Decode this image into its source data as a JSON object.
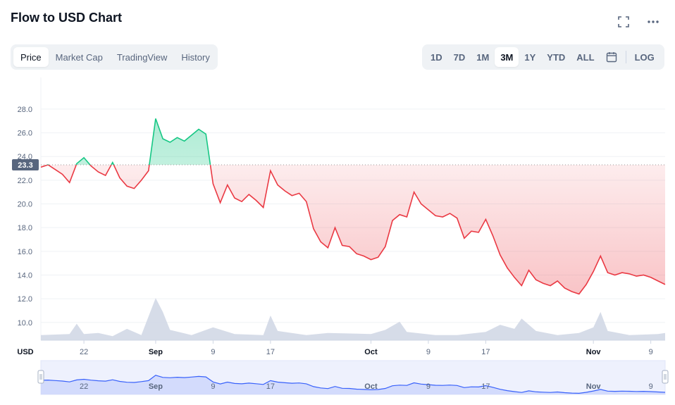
{
  "title": "Flow to USD Chart",
  "top_icons": [
    "fullscreen-icon",
    "more-icon"
  ],
  "tabs": [
    {
      "label": "Price",
      "active": true
    },
    {
      "label": "Market Cap",
      "active": false
    },
    {
      "label": "TradingView",
      "active": false
    },
    {
      "label": "History",
      "active": false
    }
  ],
  "ranges": [
    {
      "label": "1D",
      "active": false
    },
    {
      "label": "7D",
      "active": false
    },
    {
      "label": "1M",
      "active": false
    },
    {
      "label": "3M",
      "active": true
    },
    {
      "label": "1Y",
      "active": false
    },
    {
      "label": "YTD",
      "active": false
    },
    {
      "label": "ALL",
      "active": false
    }
  ],
  "calendar_icon": "calendar-icon",
  "log_label": "LOG",
  "colors": {
    "up": "#16c784",
    "down": "#ea3943",
    "nav": "#3861fb",
    "volume": "#cfd6e4"
  },
  "chart_data": {
    "type": "line",
    "currency_label": "USD",
    "current_price_label": "23.3",
    "reference_price": 23.3,
    "ylim": [
      8.5,
      29.6
    ],
    "y_ticks": [
      "28.0",
      "26.0",
      "24.0",
      "22.0",
      "20.0",
      "18.0",
      "16.0",
      "14.0",
      "12.0",
      "10.0"
    ],
    "x_ticks": [
      {
        "label": "22",
        "day": 6,
        "bold": false
      },
      {
        "label": "Sep",
        "day": 16,
        "bold": true
      },
      {
        "label": "9",
        "day": 24,
        "bold": false
      },
      {
        "label": "17",
        "day": 32,
        "bold": false
      },
      {
        "label": "Oct",
        "day": 46,
        "bold": true
      },
      {
        "label": "9",
        "day": 54,
        "bold": false
      },
      {
        "label": "17",
        "day": 62,
        "bold": false
      },
      {
        "label": "Nov",
        "day": 77,
        "bold": true
      },
      {
        "label": "9",
        "day": 85,
        "bold": false
      }
    ],
    "days_total": 87,
    "price_series": [
      {
        "day": 0,
        "price": 23.1
      },
      {
        "day": 1,
        "price": 23.3
      },
      {
        "day": 2,
        "price": 22.9
      },
      {
        "day": 3,
        "price": 22.5
      },
      {
        "day": 4,
        "price": 21.8
      },
      {
        "day": 5,
        "price": 23.4
      },
      {
        "day": 6,
        "price": 23.9
      },
      {
        "day": 7,
        "price": 23.2
      },
      {
        "day": 8,
        "price": 22.7
      },
      {
        "day": 9,
        "price": 22.4
      },
      {
        "day": 10,
        "price": 23.5
      },
      {
        "day": 11,
        "price": 22.2
      },
      {
        "day": 12,
        "price": 21.5
      },
      {
        "day": 13,
        "price": 21.3
      },
      {
        "day": 14,
        "price": 22.0
      },
      {
        "day": 15,
        "price": 22.8
      },
      {
        "day": 16,
        "price": 27.2
      },
      {
        "day": 17,
        "price": 25.5
      },
      {
        "day": 18,
        "price": 25.2
      },
      {
        "day": 19,
        "price": 25.6
      },
      {
        "day": 20,
        "price": 25.3
      },
      {
        "day": 21,
        "price": 25.8
      },
      {
        "day": 22,
        "price": 26.3
      },
      {
        "day": 23,
        "price": 25.9
      },
      {
        "day": 24,
        "price": 21.7
      },
      {
        "day": 25,
        "price": 20.1
      },
      {
        "day": 26,
        "price": 21.6
      },
      {
        "day": 27,
        "price": 20.5
      },
      {
        "day": 28,
        "price": 20.2
      },
      {
        "day": 29,
        "price": 20.8
      },
      {
        "day": 30,
        "price": 20.3
      },
      {
        "day": 31,
        "price": 19.7
      },
      {
        "day": 32,
        "price": 22.8
      },
      {
        "day": 33,
        "price": 21.6
      },
      {
        "day": 34,
        "price": 21.1
      },
      {
        "day": 35,
        "price": 20.7
      },
      {
        "day": 36,
        "price": 20.9
      },
      {
        "day": 37,
        "price": 20.2
      },
      {
        "day": 38,
        "price": 17.9
      },
      {
        "day": 39,
        "price": 16.8
      },
      {
        "day": 40,
        "price": 16.3
      },
      {
        "day": 41,
        "price": 18.0
      },
      {
        "day": 42,
        "price": 16.5
      },
      {
        "day": 43,
        "price": 16.4
      },
      {
        "day": 44,
        "price": 15.8
      },
      {
        "day": 45,
        "price": 15.6
      },
      {
        "day": 46,
        "price": 15.3
      },
      {
        "day": 47,
        "price": 15.5
      },
      {
        "day": 48,
        "price": 16.4
      },
      {
        "day": 49,
        "price": 18.6
      },
      {
        "day": 50,
        "price": 19.1
      },
      {
        "day": 51,
        "price": 18.9
      },
      {
        "day": 52,
        "price": 21.0
      },
      {
        "day": 53,
        "price": 20.0
      },
      {
        "day": 54,
        "price": 19.5
      },
      {
        "day": 55,
        "price": 19.0
      },
      {
        "day": 56,
        "price": 18.9
      },
      {
        "day": 57,
        "price": 19.2
      },
      {
        "day": 58,
        "price": 18.8
      },
      {
        "day": 59,
        "price": 17.1
      },
      {
        "day": 60,
        "price": 17.7
      },
      {
        "day": 61,
        "price": 17.6
      },
      {
        "day": 62,
        "price": 18.7
      },
      {
        "day": 63,
        "price": 17.3
      },
      {
        "day": 64,
        "price": 15.7
      },
      {
        "day": 65,
        "price": 14.6
      },
      {
        "day": 66,
        "price": 13.8
      },
      {
        "day": 67,
        "price": 13.1
      },
      {
        "day": 68,
        "price": 14.4
      },
      {
        "day": 69,
        "price": 13.6
      },
      {
        "day": 70,
        "price": 13.3
      },
      {
        "day": 71,
        "price": 13.1
      },
      {
        "day": 72,
        "price": 13.5
      },
      {
        "day": 73,
        "price": 12.9
      },
      {
        "day": 74,
        "price": 12.6
      },
      {
        "day": 75,
        "price": 12.4
      },
      {
        "day": 76,
        "price": 13.2
      },
      {
        "day": 77,
        "price": 14.3
      },
      {
        "day": 78,
        "price": 15.6
      },
      {
        "day": 79,
        "price": 14.2
      },
      {
        "day": 80,
        "price": 14.0
      },
      {
        "day": 81,
        "price": 14.2
      },
      {
        "day": 82,
        "price": 14.1
      },
      {
        "day": 83,
        "price": 13.9
      },
      {
        "day": 84,
        "price": 14.0
      },
      {
        "day": 85,
        "price": 13.8
      },
      {
        "day": 86,
        "price": 13.5
      },
      {
        "day": 87,
        "price": 13.2
      }
    ],
    "volume_series": [
      {
        "day": 0,
        "volume": 0.1
      },
      {
        "day": 4,
        "volume": 0.12
      },
      {
        "day": 5,
        "volume": 0.32
      },
      {
        "day": 6,
        "volume": 0.12
      },
      {
        "day": 8,
        "volume": 0.14
      },
      {
        "day": 10,
        "volume": 0.08
      },
      {
        "day": 12,
        "volume": 0.22
      },
      {
        "day": 14,
        "volume": 0.1
      },
      {
        "day": 16,
        "volume": 0.82
      },
      {
        "day": 17,
        "volume": 0.55
      },
      {
        "day": 18,
        "volume": 0.2
      },
      {
        "day": 21,
        "volume": 0.1
      },
      {
        "day": 24,
        "volume": 0.25
      },
      {
        "day": 27,
        "volume": 0.12
      },
      {
        "day": 31,
        "volume": 0.1
      },
      {
        "day": 32,
        "volume": 0.48
      },
      {
        "day": 33,
        "volume": 0.18
      },
      {
        "day": 37,
        "volume": 0.1
      },
      {
        "day": 40,
        "volume": 0.14
      },
      {
        "day": 46,
        "volume": 0.12
      },
      {
        "day": 48,
        "volume": 0.2
      },
      {
        "day": 50,
        "volume": 0.36
      },
      {
        "day": 51,
        "volume": 0.16
      },
      {
        "day": 55,
        "volume": 0.1
      },
      {
        "day": 58,
        "volume": 0.1
      },
      {
        "day": 62,
        "volume": 0.16
      },
      {
        "day": 64,
        "volume": 0.3
      },
      {
        "day": 66,
        "volume": 0.22
      },
      {
        "day": 67,
        "volume": 0.42
      },
      {
        "day": 69,
        "volume": 0.18
      },
      {
        "day": 72,
        "volume": 0.1
      },
      {
        "day": 75,
        "volume": 0.14
      },
      {
        "day": 77,
        "volume": 0.25
      },
      {
        "day": 78,
        "volume": 0.55
      },
      {
        "day": 79,
        "volume": 0.18
      },
      {
        "day": 82,
        "volume": 0.1
      },
      {
        "day": 86,
        "volume": 0.12
      },
      {
        "day": 87,
        "volume": 0.14
      }
    ]
  }
}
